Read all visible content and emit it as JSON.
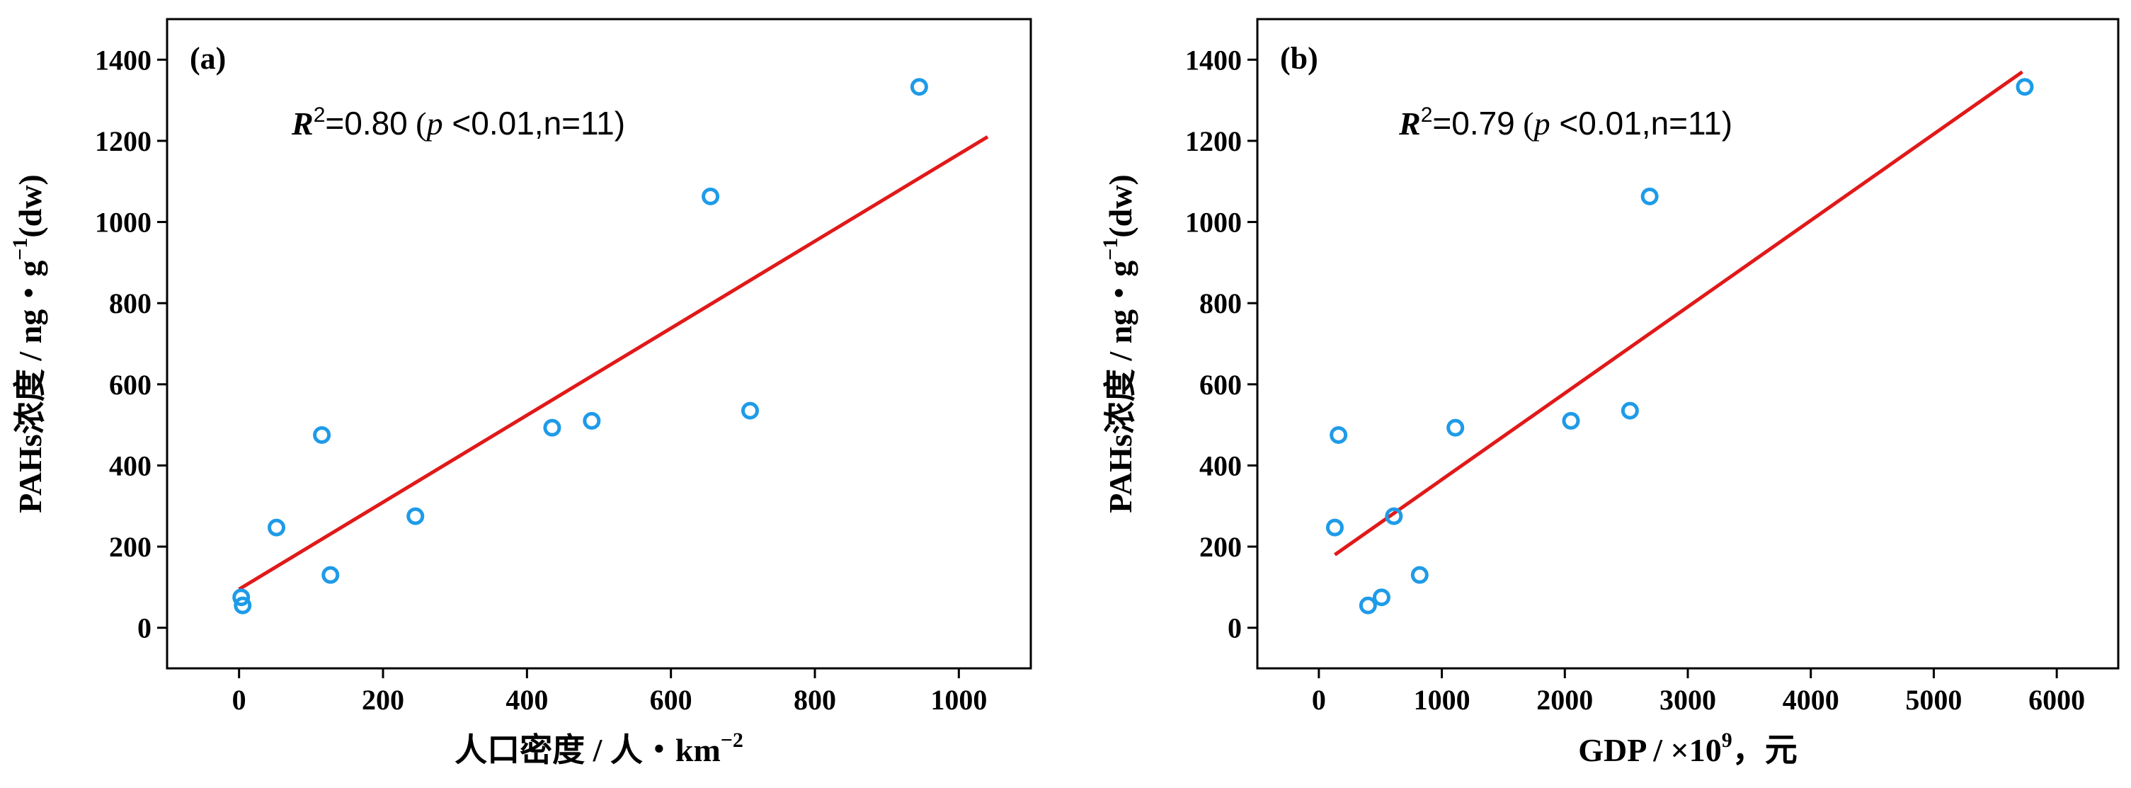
{
  "chart_data": [
    {
      "type": "scatter",
      "panel_label": "(a)",
      "annotation": {
        "r": "R",
        "sup": "2",
        "value": "=0.80",
        "paren_open": "(",
        "p": "p",
        "rest": "<0.01,n=11)"
      },
      "xlabel": "人口密度 / 人・km",
      "xlabel_sup": "−2",
      "ylabel": "PAHs浓度 / ng・g",
      "ylabel_sup": "−1",
      "ylabel_tail": "(dw)",
      "xlim": [
        -100,
        1100
      ],
      "ylim": [
        -100,
        1500
      ],
      "xticks": [
        0,
        200,
        400,
        600,
        800,
        1000
      ],
      "yticks": [
        0,
        200,
        400,
        600,
        800,
        1000,
        1200,
        1400
      ],
      "points": [
        [
          3,
          75
        ],
        [
          5,
          55
        ],
        [
          52,
          247
        ],
        [
          115,
          475
        ],
        [
          127,
          130
        ],
        [
          245,
          275
        ],
        [
          435,
          493
        ],
        [
          490,
          510
        ],
        [
          655,
          1063
        ],
        [
          710,
          535
        ],
        [
          945,
          1333
        ]
      ],
      "fit": {
        "x1": 0,
        "y1": 95,
        "x2": 1040,
        "y2": 1210
      },
      "colors": {
        "point": "#1e9be8",
        "fit": "#e11919"
      }
    },
    {
      "type": "scatter",
      "panel_label": "(b)",
      "annotation": {
        "r": "R",
        "sup": "2",
        "value": "=0.79",
        "paren_open": "(",
        "p": "p",
        "rest": "<0.01,n=11)"
      },
      "xlabel": "GDP / ×10",
      "xlabel_sup": "9",
      "xlabel_tail": "，元",
      "ylabel": "PAHs浓度 / ng・g",
      "ylabel_sup": "−1",
      "ylabel_tail": "(dw)",
      "xlim": [
        -500,
        6500
      ],
      "ylim": [
        -100,
        1500
      ],
      "xticks": [
        0,
        1000,
        2000,
        3000,
        4000,
        5000,
        6000
      ],
      "yticks": [
        0,
        200,
        400,
        600,
        800,
        1000,
        1200,
        1400
      ],
      "points": [
        [
          130,
          247
        ],
        [
          160,
          475
        ],
        [
          400,
          55
        ],
        [
          510,
          75
        ],
        [
          610,
          275
        ],
        [
          820,
          130
        ],
        [
          1110,
          493
        ],
        [
          2050,
          510
        ],
        [
          2530,
          535
        ],
        [
          2690,
          1063
        ],
        [
          5740,
          1333
        ]
      ],
      "fit": {
        "x1": 130,
        "y1": 180,
        "x2": 5720,
        "y2": 1370
      },
      "colors": {
        "point": "#1e9be8",
        "fit": "#e11919"
      }
    }
  ]
}
